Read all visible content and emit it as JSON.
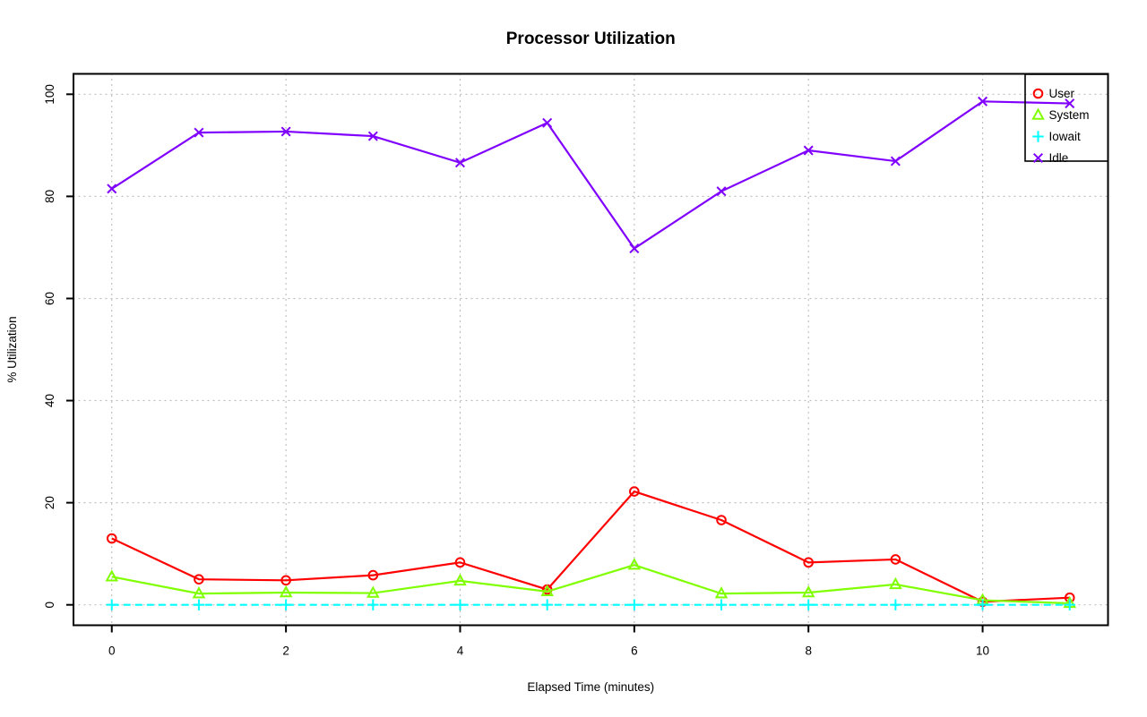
{
  "chart_data": {
    "type": "line",
    "title": "Processor Utilization",
    "xlabel": "Elapsed Time (minutes)",
    "ylabel": "% Utilization",
    "x": [
      0,
      1,
      2,
      3,
      4,
      5,
      6,
      7,
      8,
      9,
      10,
      11
    ],
    "series": [
      {
        "name": "User",
        "color": "#FF0000",
        "marker": "circle",
        "line": "solid",
        "values": [
          13.0,
          5.0,
          4.8,
          5.8,
          8.3,
          3.0,
          22.2,
          16.6,
          8.3,
          8.9,
          0.6,
          1.4
        ]
      },
      {
        "name": "System",
        "color": "#80FF00",
        "marker": "triangle",
        "line": "solid",
        "values": [
          5.5,
          2.2,
          2.4,
          2.3,
          4.7,
          2.6,
          7.8,
          2.2,
          2.4,
          4.0,
          0.9,
          0.3
        ]
      },
      {
        "name": "Iowait",
        "color": "#00FFFF",
        "marker": "plus",
        "line": "dashed",
        "values": [
          0,
          0,
          0,
          0,
          0,
          0,
          0,
          0,
          0,
          0,
          0,
          0
        ]
      },
      {
        "name": "Idle",
        "color": "#8000FF",
        "marker": "x",
        "line": "solid",
        "values": [
          81.5,
          92.5,
          92.7,
          91.8,
          86.6,
          94.4,
          69.8,
          81.0,
          89.0,
          86.9,
          98.6,
          98.2
        ]
      }
    ],
    "xticks": [
      0,
      2,
      4,
      6,
      8,
      10
    ],
    "yticks": [
      0,
      20,
      40,
      60,
      80,
      100
    ],
    "xlim": [
      -0.44,
      11.44
    ],
    "ylim": [
      -4,
      104
    ],
    "grid": true,
    "grid_color": "#BEBEBE",
    "axis_color": "#000000",
    "legend_position": "top-right"
  }
}
